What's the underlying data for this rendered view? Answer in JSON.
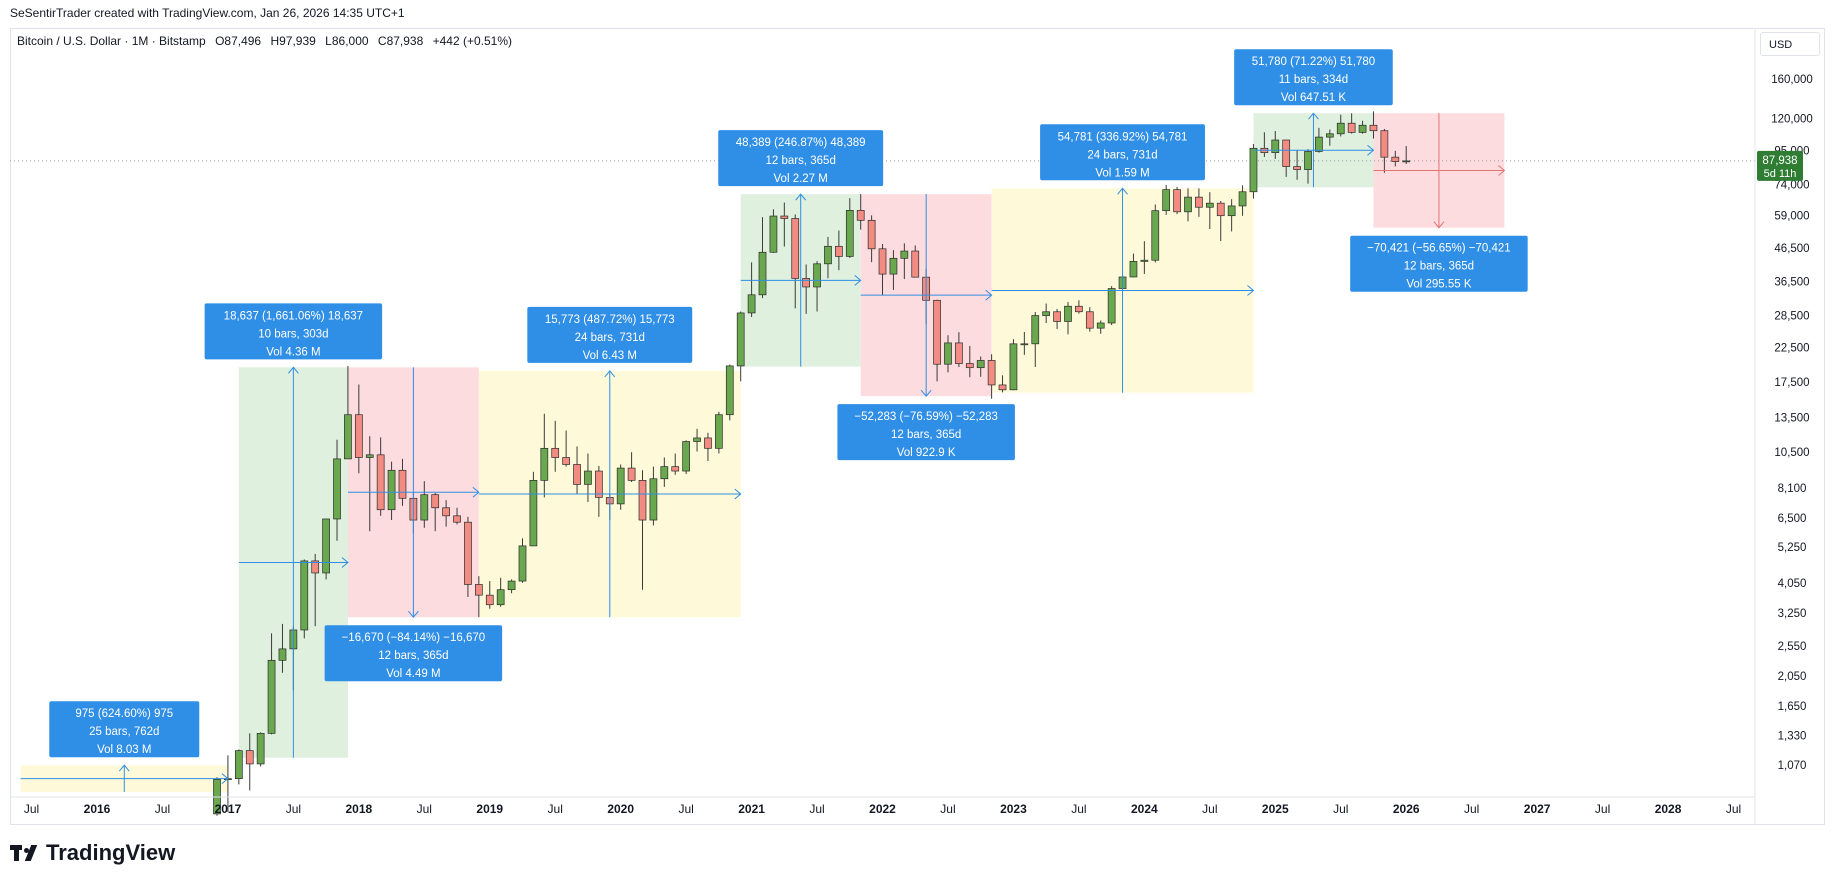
{
  "header": {
    "attribution": "SeSentirTrader created with TradingView.com, Jan 26, 2026 14:35 UTC+1"
  },
  "symbol": {
    "name": "Bitcoin / U.S. Dollar · 1M · Bitstamp",
    "open": "O87,496",
    "high": "H97,939",
    "low": "L86,000",
    "close": "C87,938",
    "change": "+442 (+0.51%)"
  },
  "currency_label": "USD",
  "price_tag": {
    "price": "87,938",
    "countdown": "5d 11h",
    "color": "#2e7d32"
  },
  "brand": "TradingView",
  "colors": {
    "up": "#6aa84f",
    "down": "#f28b82",
    "measure_box": "#2f8ee5",
    "zone_green": "#dff0de",
    "zone_red": "#fcdcdf",
    "zone_yellow": "#fefad9"
  },
  "chart_data": {
    "type": "candlestick",
    "interval": "1M",
    "y_scale": "log",
    "ylim": [
      880,
      180000
    ],
    "y_ticks": [
      "160,000",
      "120,000",
      "95,000",
      "74,000",
      "59,000",
      "46,500",
      "36,500",
      "28,500",
      "22,500",
      "17,500",
      "13,500",
      "10,500",
      "8,100",
      "6,500",
      "5,250",
      "4,050",
      "3,250",
      "2,550",
      "2,050",
      "1,650",
      "1,330",
      "1,070"
    ],
    "x_ticks": [
      "Jul",
      "2016",
      "Jul",
      "2017",
      "Jul",
      "2018",
      "Jul",
      "2019",
      "Jul",
      "2020",
      "Jul",
      "2021",
      "Jul",
      "2022",
      "Jul",
      "2023",
      "Jul",
      "2024",
      "Jul",
      "2025",
      "Jul",
      "2026",
      "Jul",
      "2027",
      "Jul",
      "2028",
      "Jul"
    ],
    "current_price": 87938,
    "candles": [
      {
        "t": "2016-12",
        "o": 750,
        "h": 980,
        "l": 740,
        "c": 965
      },
      {
        "t": "2017-01",
        "o": 965,
        "h": 1150,
        "l": 760,
        "c": 970
      },
      {
        "t": "2017-02",
        "o": 970,
        "h": 1200,
        "l": 930,
        "c": 1190
      },
      {
        "t": "2017-03",
        "o": 1190,
        "h": 1350,
        "l": 890,
        "c": 1080
      },
      {
        "t": "2017-04",
        "o": 1080,
        "h": 1360,
        "l": 1060,
        "c": 1350
      },
      {
        "t": "2017-05",
        "o": 1350,
        "h": 2800,
        "l": 1340,
        "c": 2300
      },
      {
        "t": "2017-06",
        "o": 2300,
        "h": 3000,
        "l": 2100,
        "c": 2500
      },
      {
        "t": "2017-07",
        "o": 2500,
        "h": 2950,
        "l": 1850,
        "c": 2870
      },
      {
        "t": "2017-08",
        "o": 2870,
        "h": 4800,
        "l": 2700,
        "c": 4750
      },
      {
        "t": "2017-09",
        "o": 4750,
        "h": 5000,
        "l": 2950,
        "c": 4350
      },
      {
        "t": "2017-10",
        "o": 4350,
        "h": 6450,
        "l": 4150,
        "c": 6450
      },
      {
        "t": "2017-11",
        "o": 6450,
        "h": 11500,
        "l": 5500,
        "c": 10000
      },
      {
        "t": "2017-12",
        "o": 10000,
        "h": 19700,
        "l": 10000,
        "c": 13800
      },
      {
        "t": "2018-01",
        "o": 13800,
        "h": 17200,
        "l": 9000,
        "c": 10100
      },
      {
        "t": "2018-02",
        "o": 10100,
        "h": 11800,
        "l": 5900,
        "c": 10300
      },
      {
        "t": "2018-03",
        "o": 10300,
        "h": 11700,
        "l": 6600,
        "c": 6900
      },
      {
        "t": "2018-04",
        "o": 6900,
        "h": 9800,
        "l": 6400,
        "c": 9200
      },
      {
        "t": "2018-05",
        "o": 9200,
        "h": 10000,
        "l": 7100,
        "c": 7500
      },
      {
        "t": "2018-06",
        "o": 7500,
        "h": 7800,
        "l": 5800,
        "c": 6400
      },
      {
        "t": "2018-07",
        "o": 6400,
        "h": 8500,
        "l": 6050,
        "c": 7700
      },
      {
        "t": "2018-08",
        "o": 7700,
        "h": 7800,
        "l": 5900,
        "c": 7000
      },
      {
        "t": "2018-09",
        "o": 7000,
        "h": 7400,
        "l": 6100,
        "c": 6600
      },
      {
        "t": "2018-10",
        "o": 6600,
        "h": 7000,
        "l": 6200,
        "c": 6300
      },
      {
        "t": "2018-11",
        "o": 6300,
        "h": 6550,
        "l": 3650,
        "c": 4000
      },
      {
        "t": "2018-12",
        "o": 4000,
        "h": 4250,
        "l": 3150,
        "c": 3700
      },
      {
        "t": "2019-01",
        "o": 3700,
        "h": 4100,
        "l": 3350,
        "c": 3450
      },
      {
        "t": "2019-02",
        "o": 3450,
        "h": 4200,
        "l": 3400,
        "c": 3850
      },
      {
        "t": "2019-03",
        "o": 3850,
        "h": 4150,
        "l": 3750,
        "c": 4100
      },
      {
        "t": "2019-04",
        "o": 4100,
        "h": 5600,
        "l": 4050,
        "c": 5300
      },
      {
        "t": "2019-05",
        "o": 5300,
        "h": 9100,
        "l": 5300,
        "c": 8550
      },
      {
        "t": "2019-06",
        "o": 8550,
        "h": 13900,
        "l": 7550,
        "c": 10800
      },
      {
        "t": "2019-07",
        "o": 10800,
        "h": 13200,
        "l": 9100,
        "c": 10100
      },
      {
        "t": "2019-08",
        "o": 10100,
        "h": 12300,
        "l": 9450,
        "c": 9600
      },
      {
        "t": "2019-09",
        "o": 9600,
        "h": 10950,
        "l": 7750,
        "c": 8300
      },
      {
        "t": "2019-10",
        "o": 8300,
        "h": 10400,
        "l": 7300,
        "c": 9150
      },
      {
        "t": "2019-11",
        "o": 9150,
        "h": 9500,
        "l": 6550,
        "c": 7550
      },
      {
        "t": "2019-12",
        "o": 7550,
        "h": 7750,
        "l": 6400,
        "c": 7200
      },
      {
        "t": "2020-01",
        "o": 7200,
        "h": 9600,
        "l": 6900,
        "c": 9350
      },
      {
        "t": "2020-02",
        "o": 9350,
        "h": 10500,
        "l": 8450,
        "c": 8550
      },
      {
        "t": "2020-03",
        "o": 8550,
        "h": 9200,
        "l": 3850,
        "c": 6400
      },
      {
        "t": "2020-04",
        "o": 6400,
        "h": 9450,
        "l": 6150,
        "c": 8650
      },
      {
        "t": "2020-05",
        "o": 8650,
        "h": 10100,
        "l": 8150,
        "c": 9450
      },
      {
        "t": "2020-06",
        "o": 9450,
        "h": 10400,
        "l": 8900,
        "c": 9150
      },
      {
        "t": "2020-07",
        "o": 9150,
        "h": 11450,
        "l": 8950,
        "c": 11350
      },
      {
        "t": "2020-08",
        "o": 11350,
        "h": 12450,
        "l": 10550,
        "c": 11650
      },
      {
        "t": "2020-09",
        "o": 11650,
        "h": 12100,
        "l": 9850,
        "c": 10800
      },
      {
        "t": "2020-10",
        "o": 10800,
        "h": 14100,
        "l": 10400,
        "c": 13800
      },
      {
        "t": "2020-11",
        "o": 13800,
        "h": 19900,
        "l": 13250,
        "c": 19700
      },
      {
        "t": "2020-12",
        "o": 19700,
        "h": 29300,
        "l": 17600,
        "c": 29000
      },
      {
        "t": "2021-01",
        "o": 29000,
        "h": 41950,
        "l": 28150,
        "c": 33100
      },
      {
        "t": "2021-02",
        "o": 33100,
        "h": 58350,
        "l": 32300,
        "c": 45150
      },
      {
        "t": "2021-03",
        "o": 45150,
        "h": 61750,
        "l": 44950,
        "c": 58800
      },
      {
        "t": "2021-04",
        "o": 58800,
        "h": 64900,
        "l": 47050,
        "c": 57750
      },
      {
        "t": "2021-05",
        "o": 57750,
        "h": 59500,
        "l": 30000,
        "c": 37300
      },
      {
        "t": "2021-06",
        "o": 37300,
        "h": 41300,
        "l": 28800,
        "c": 35050
      },
      {
        "t": "2021-07",
        "o": 35050,
        "h": 42300,
        "l": 29300,
        "c": 41500
      },
      {
        "t": "2021-08",
        "o": 41500,
        "h": 50500,
        "l": 37350,
        "c": 47150
      },
      {
        "t": "2021-09",
        "o": 47150,
        "h": 52900,
        "l": 39600,
        "c": 43800
      },
      {
        "t": "2021-10",
        "o": 43800,
        "h": 67000,
        "l": 43300,
        "c": 61300
      },
      {
        "t": "2021-11",
        "o": 61300,
        "h": 69000,
        "l": 53250,
        "c": 57000
      },
      {
        "t": "2021-12",
        "o": 57000,
        "h": 59100,
        "l": 42000,
        "c": 46300
      },
      {
        "t": "2022-01",
        "o": 46300,
        "h": 47950,
        "l": 33000,
        "c": 38500
      },
      {
        "t": "2022-02",
        "o": 38500,
        "h": 45850,
        "l": 34300,
        "c": 43200
      },
      {
        "t": "2022-03",
        "o": 43200,
        "h": 48200,
        "l": 37150,
        "c": 45550
      },
      {
        "t": "2022-04",
        "o": 45550,
        "h": 47450,
        "l": 37700,
        "c": 37650
      },
      {
        "t": "2022-05",
        "o": 37650,
        "h": 40000,
        "l": 26700,
        "c": 31800
      },
      {
        "t": "2022-06",
        "o": 31800,
        "h": 31950,
        "l": 17600,
        "c": 19950
      },
      {
        "t": "2022-07",
        "o": 19950,
        "h": 24650,
        "l": 18800,
        "c": 23300
      },
      {
        "t": "2022-08",
        "o": 23300,
        "h": 25200,
        "l": 19550,
        "c": 20050
      },
      {
        "t": "2022-09",
        "o": 20050,
        "h": 22800,
        "l": 18150,
        "c": 19450
      },
      {
        "t": "2022-10",
        "o": 19450,
        "h": 21100,
        "l": 18200,
        "c": 20500
      },
      {
        "t": "2022-11",
        "o": 20500,
        "h": 21450,
        "l": 15500,
        "c": 17150
      },
      {
        "t": "2022-12",
        "o": 17150,
        "h": 18400,
        "l": 16250,
        "c": 16550
      },
      {
        "t": "2023-01",
        "o": 16550,
        "h": 23950,
        "l": 16500,
        "c": 23150
      },
      {
        "t": "2023-02",
        "o": 23150,
        "h": 25250,
        "l": 21350,
        "c": 23150
      },
      {
        "t": "2023-03",
        "o": 23150,
        "h": 29200,
        "l": 19550,
        "c": 28450
      },
      {
        "t": "2023-04",
        "o": 28450,
        "h": 31050,
        "l": 26950,
        "c": 29250
      },
      {
        "t": "2023-05",
        "o": 29250,
        "h": 29850,
        "l": 25800,
        "c": 27250
      },
      {
        "t": "2023-06",
        "o": 27250,
        "h": 31400,
        "l": 24800,
        "c": 30450
      },
      {
        "t": "2023-07",
        "o": 30450,
        "h": 31800,
        "l": 28850,
        "c": 29250
      },
      {
        "t": "2023-08",
        "o": 29250,
        "h": 30250,
        "l": 25300,
        "c": 25950
      },
      {
        "t": "2023-09",
        "o": 25950,
        "h": 27450,
        "l": 24900,
        "c": 26950
      },
      {
        "t": "2023-10",
        "o": 26950,
        "h": 35250,
        "l": 26550,
        "c": 34650
      },
      {
        "t": "2023-11",
        "o": 34650,
        "h": 38450,
        "l": 34100,
        "c": 37700
      },
      {
        "t": "2023-12",
        "o": 37700,
        "h": 44700,
        "l": 37600,
        "c": 42250
      },
      {
        "t": "2024-01",
        "o": 42250,
        "h": 48950,
        "l": 38550,
        "c": 42600
      },
      {
        "t": "2024-02",
        "o": 42600,
        "h": 64000,
        "l": 41900,
        "c": 61150
      },
      {
        "t": "2024-03",
        "o": 61150,
        "h": 73800,
        "l": 59300,
        "c": 71300
      },
      {
        "t": "2024-04",
        "o": 71300,
        "h": 72750,
        "l": 59600,
        "c": 60650
      },
      {
        "t": "2024-05",
        "o": 60650,
        "h": 71950,
        "l": 56550,
        "c": 67500
      },
      {
        "t": "2024-06",
        "o": 67500,
        "h": 71950,
        "l": 58450,
        "c": 62700
      },
      {
        "t": "2024-07",
        "o": 62700,
        "h": 70000,
        "l": 53500,
        "c": 64600
      },
      {
        "t": "2024-08",
        "o": 64600,
        "h": 65600,
        "l": 49000,
        "c": 58950
      },
      {
        "t": "2024-09",
        "o": 58950,
        "h": 66500,
        "l": 52550,
        "c": 63300
      },
      {
        "t": "2024-10",
        "o": 63300,
        "h": 73600,
        "l": 58900,
        "c": 70200
      },
      {
        "t": "2024-11",
        "o": 70200,
        "h": 99500,
        "l": 66800,
        "c": 96400
      },
      {
        "t": "2024-12",
        "o": 96400,
        "h": 108350,
        "l": 90500,
        "c": 93400
      },
      {
        "t": "2025-01",
        "o": 93400,
        "h": 109350,
        "l": 89250,
        "c": 102400
      },
      {
        "t": "2025-02",
        "o": 102400,
        "h": 102500,
        "l": 78250,
        "c": 84350
      },
      {
        "t": "2025-03",
        "o": 84350,
        "h": 95000,
        "l": 76600,
        "c": 82550
      },
      {
        "t": "2025-04",
        "o": 82550,
        "h": 95750,
        "l": 74450,
        "c": 94200
      },
      {
        "t": "2025-05",
        "o": 94200,
        "h": 111900,
        "l": 93400,
        "c": 104600
      },
      {
        "t": "2025-06",
        "o": 104600,
        "h": 110500,
        "l": 98200,
        "c": 107150
      },
      {
        "t": "2025-07",
        "o": 107150,
        "h": 123200,
        "l": 105100,
        "c": 115750
      },
      {
        "t": "2025-08",
        "o": 115750,
        "h": 124450,
        "l": 107300,
        "c": 108250
      },
      {
        "t": "2025-09",
        "o": 108250,
        "h": 117850,
        "l": 107250,
        "c": 114050
      },
      {
        "t": "2025-10",
        "o": 114050,
        "h": 126200,
        "l": 103500,
        "c": 109600
      },
      {
        "t": "2025-11",
        "o": 109600,
        "h": 111000,
        "l": 80600,
        "c": 90350
      },
      {
        "t": "2025-12",
        "o": 90350,
        "h": 94600,
        "l": 84450,
        "c": 87496
      },
      {
        "t": "2026-01",
        "o": 87496,
        "h": 97939,
        "l": 86000,
        "c": 87938
      }
    ],
    "measurements": [
      {
        "line1": "975 (624.60%) 975",
        "line2": "25 bars, 762d",
        "line3": "Vol 8.03 M",
        "zone": "yellow",
        "t0": "2015-06",
        "t1": "2017-01",
        "p0": 880,
        "p1": 1070,
        "box_below": false
      },
      {
        "line1": "18,637 (1,661.06%) 18,637",
        "line2": "10 bars, 303d",
        "line3": "Vol 4.36 M",
        "zone": "green",
        "t0": "2017-02",
        "t1": "2017-12",
        "p0": 1130,
        "p1": 19500,
        "box_below": false
      },
      {
        "line1": "−16,670 (−84.14%) −16,670",
        "line2": "12 bars, 365d",
        "line3": "Vol 4.49 M",
        "zone": "red",
        "t0": "2017-12",
        "t1": "2018-12",
        "p0": 19500,
        "p1": 3150,
        "box_below": true
      },
      {
        "line1": "15,773 (487.72%) 15,773",
        "line2": "24 bars, 731d",
        "line3": "Vol 6.43 M",
        "zone": "yellow",
        "t0": "2018-12",
        "t1": "2020-12",
        "p0": 3150,
        "p1": 19000,
        "box_below": false
      },
      {
        "line1": "48,389 (246.87%) 48,389",
        "line2": "12 bars, 365d",
        "line3": "Vol 2.27 M",
        "zone": "green",
        "t0": "2020-12",
        "t1": "2021-11",
        "p0": 19600,
        "p1": 69000,
        "box_below": false
      },
      {
        "line1": "−52,283 (−76.59%) −52,283",
        "line2": "12 bars, 365d",
        "line3": "Vol 922.9 K",
        "zone": "red",
        "t0": "2021-11",
        "t1": "2022-11",
        "p0": 69000,
        "p1": 15800,
        "box_below": true
      },
      {
        "line1": "54,781 (336.92%) 54,781",
        "line2": "24 bars, 731d",
        "line3": "Vol 1.59 M",
        "zone": "yellow",
        "t0": "2022-11",
        "t1": "2024-11",
        "p0": 16200,
        "p1": 72000,
        "box_below": false
      },
      {
        "line1": "51,780 (71.22%) 51,780",
        "line2": "11 bars, 334d",
        "line3": "Vol 647.51 K",
        "zone": "green",
        "t0": "2024-11",
        "t1": "2025-10",
        "p0": 72500,
        "p1": 124500,
        "box_below": false
      },
      {
        "line1": "−70,421 (−56.65%) −70,421",
        "line2": "12 bars, 365d",
        "line3": "Vol 295.55 K",
        "zone": "red",
        "t0": "2025-10",
        "t1": "2026-10",
        "p0": 124500,
        "p1": 54000,
        "box_below": true
      }
    ]
  }
}
